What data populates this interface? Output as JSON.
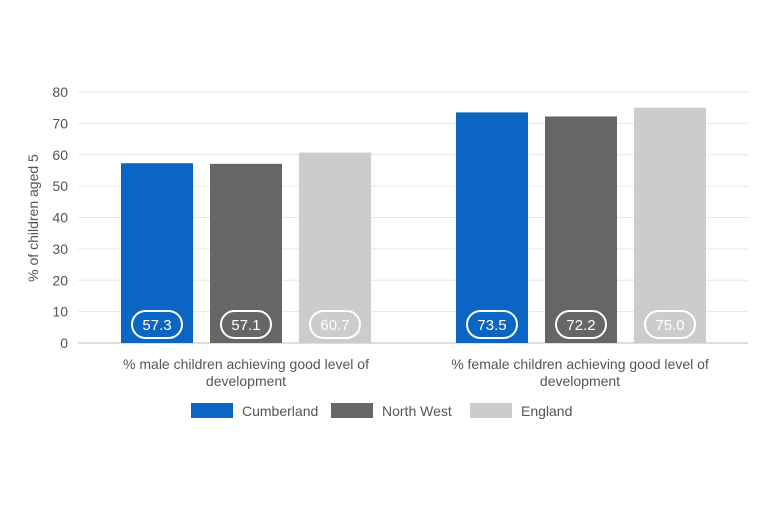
{
  "chart_data": {
    "type": "bar",
    "title": "",
    "xlabel": "",
    "ylabel": "% of children aged 5",
    "ylim": [
      0,
      80
    ],
    "yticks": [
      0,
      10,
      20,
      30,
      40,
      50,
      60,
      70,
      80
    ],
    "grid": true,
    "legend_position": "bottom",
    "categories": [
      [
        "% male children achieving good level of",
        "development"
      ],
      [
        "% female children achieving good level of",
        "development"
      ]
    ],
    "series": [
      {
        "name": "Cumberland",
        "color": "#0a66c2",
        "values": [
          57.3,
          73.5
        ],
        "labels": [
          "57.3",
          "73.5"
        ]
      },
      {
        "name": "North West",
        "color": "#666666",
        "values": [
          57.1,
          72.2
        ],
        "labels": [
          "57.1",
          "72.2"
        ]
      },
      {
        "name": "England",
        "color": "#cccccc",
        "values": [
          60.7,
          75.0
        ],
        "labels": [
          "60.7",
          "75.0"
        ]
      }
    ]
  }
}
